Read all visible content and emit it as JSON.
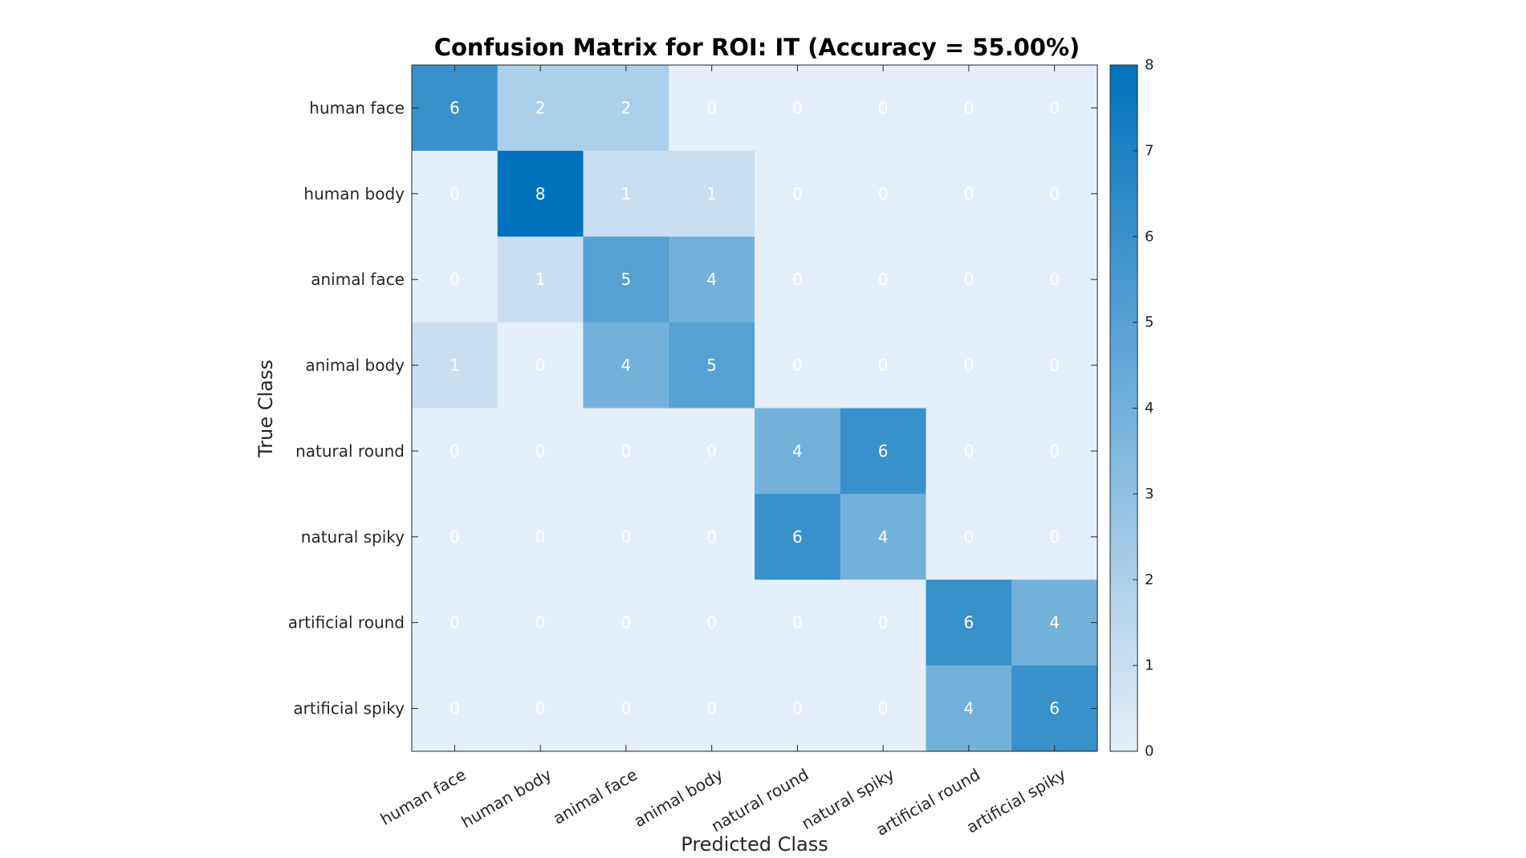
{
  "chart_data": {
    "type": "heatmap",
    "title": "Confusion Matrix for ROI: IT (Accuracy = 55.00%)",
    "xlabel": "Predicted Class",
    "ylabel": "True Class",
    "row_labels": [
      "human face",
      "human body",
      "animal face",
      "animal body",
      "natural round",
      "natural spiky",
      "artificial round",
      "artificial spiky"
    ],
    "col_labels": [
      "human face",
      "human body",
      "animal face",
      "animal body",
      "natural round",
      "natural spiky",
      "artificial round",
      "artificial spiky"
    ],
    "matrix": [
      [
        6,
        2,
        2,
        0,
        0,
        0,
        0,
        0
      ],
      [
        0,
        8,
        1,
        1,
        0,
        0,
        0,
        0
      ],
      [
        0,
        1,
        5,
        4,
        0,
        0,
        0,
        0
      ],
      [
        1,
        0,
        4,
        5,
        0,
        0,
        0,
        0
      ],
      [
        0,
        0,
        0,
        0,
        4,
        6,
        0,
        0
      ],
      [
        0,
        0,
        0,
        0,
        6,
        4,
        0,
        0
      ],
      [
        0,
        0,
        0,
        0,
        0,
        0,
        6,
        4
      ],
      [
        0,
        0,
        0,
        0,
        0,
        0,
        4,
        6
      ]
    ],
    "colorbar": {
      "range": [
        0,
        8
      ],
      "ticks": [
        "0",
        "1",
        "2",
        "3",
        "4",
        "5",
        "6",
        "7",
        "8"
      ],
      "low_color": "#e5eff9",
      "high_color": "#0072bd"
    }
  }
}
